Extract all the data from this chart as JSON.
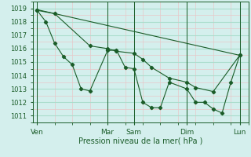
{
  "background_color": "#d4efed",
  "grid_major_color": "#aaddcc",
  "grid_minor_color": "#e8c8c8",
  "line_color": "#1a5c28",
  "marker_color": "#1a5c28",
  "ylabel_text": "Pression niveau de la mer( hPa )",
  "xtick_labels": [
    "Ven",
    "Mar",
    "Sam",
    "Dim",
    "Lun"
  ],
  "xtick_positions": [
    0,
    8,
    11,
    17,
    23
  ],
  "ylim": [
    1010.5,
    1019.5
  ],
  "xlim": [
    -0.5,
    24
  ],
  "yticks": [
    1011,
    1012,
    1013,
    1014,
    1015,
    1016,
    1017,
    1018,
    1019
  ],
  "line1_x": [
    0,
    1,
    2,
    3,
    4,
    5,
    6,
    8,
    9,
    10,
    11,
    12,
    13,
    14,
    15,
    17,
    18,
    19,
    20,
    21,
    22,
    23
  ],
  "line1_y": [
    1018.85,
    1018.0,
    1016.4,
    1015.4,
    1014.8,
    1013.0,
    1012.85,
    1015.85,
    1015.9,
    1014.6,
    1014.5,
    1012.0,
    1011.6,
    1011.6,
    1013.5,
    1013.0,
    1012.0,
    1012.0,
    1011.5,
    1011.2,
    1013.5,
    1015.5
  ],
  "line2_x": [
    0,
    2,
    6,
    8,
    9,
    11,
    12,
    13,
    15,
    17,
    18,
    20,
    23
  ],
  "line2_y": [
    1018.85,
    1018.6,
    1016.2,
    1016.0,
    1015.8,
    1015.65,
    1015.2,
    1014.6,
    1013.8,
    1013.5,
    1013.1,
    1012.8,
    1015.5
  ],
  "line3_x": [
    0,
    23
  ],
  "line3_y": [
    1018.9,
    1015.5
  ]
}
